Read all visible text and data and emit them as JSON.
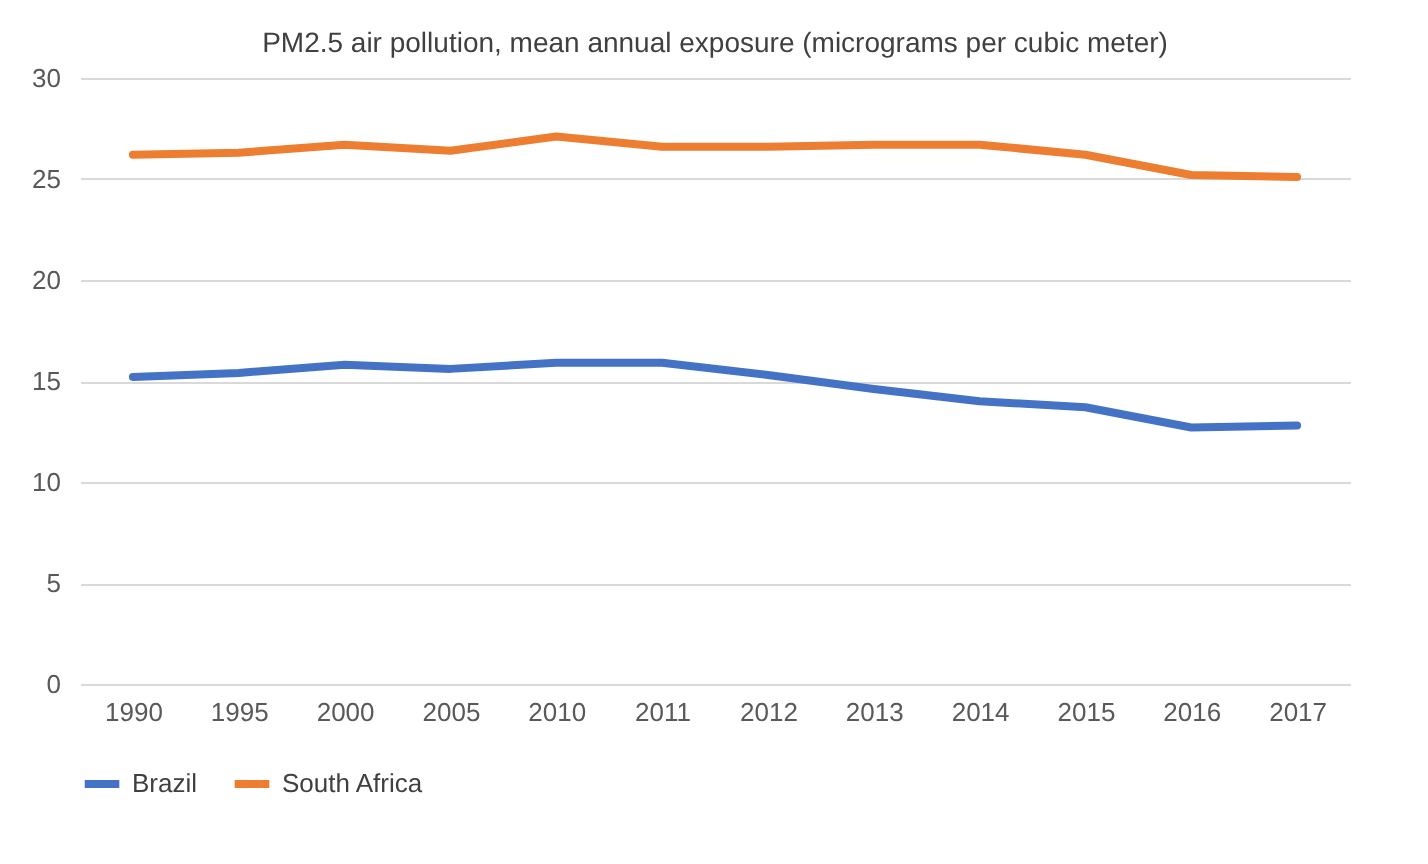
{
  "chart_data": {
    "type": "line",
    "title": "PM2.5 air pollution, mean annual exposure (micrograms per cubic meter)",
    "categories": [
      "1990",
      "1995",
      "2000",
      "2005",
      "2010",
      "2011",
      "2012",
      "2013",
      "2014",
      "2015",
      "2016",
      "2017"
    ],
    "series": [
      {
        "name": "Brazil",
        "color": "#4472c4",
        "values": [
          15.2,
          15.4,
          15.8,
          15.6,
          15.9,
          15.9,
          15.3,
          14.6,
          14.0,
          13.7,
          12.7,
          12.8
        ]
      },
      {
        "name": "South Africa",
        "color": "#ed7d31",
        "values": [
          26.2,
          26.3,
          26.7,
          26.4,
          27.1,
          26.6,
          26.6,
          26.7,
          26.7,
          26.2,
          25.2,
          25.1
        ]
      }
    ],
    "ylim": [
      0,
      30
    ],
    "yticks": [
      0,
      5,
      10,
      15,
      20,
      25,
      30
    ],
    "grid": "y",
    "legend": "bottom",
    "marker": "none",
    "line_style": "solid"
  }
}
